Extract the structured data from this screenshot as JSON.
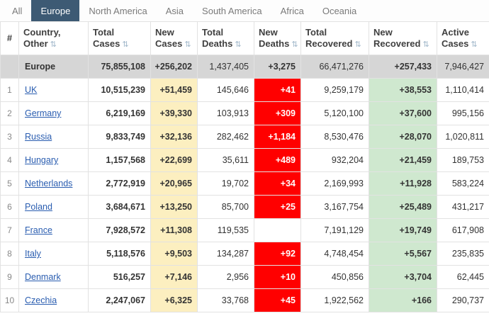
{
  "tabs": {
    "items": [
      {
        "label": "All",
        "active": false
      },
      {
        "label": "Europe",
        "active": true
      },
      {
        "label": "North America",
        "active": false
      },
      {
        "label": "Asia",
        "active": false
      },
      {
        "label": "South America",
        "active": false
      },
      {
        "label": "Africa",
        "active": false
      },
      {
        "label": "Oceania",
        "active": false
      }
    ]
  },
  "table": {
    "sort_icon": "⇅",
    "headers": [
      {
        "label": "#",
        "sortable": false
      },
      {
        "label": "Country, Other",
        "sortable": true
      },
      {
        "label": "Total Cases",
        "sortable": true
      },
      {
        "label": "New Cases",
        "sortable": true
      },
      {
        "label": "Total Deaths",
        "sortable": true
      },
      {
        "label": "New Deaths",
        "sortable": true
      },
      {
        "label": "Total Recovered",
        "sortable": true
      },
      {
        "label": "New Recovered",
        "sortable": true
      },
      {
        "label": "Active Cases",
        "sortable": true
      }
    ],
    "totals_row": {
      "rank": "",
      "country": "Europe",
      "total_cases": "75,855,108",
      "new_cases": "+256,202",
      "total_deaths": "1,437,405",
      "new_deaths": "+3,275",
      "total_recovered": "66,471,276",
      "new_recovered": "+257,433",
      "active_cases": "7,946,427"
    },
    "rows": [
      {
        "rank": "1",
        "country": "UK",
        "total_cases": "10,515,239",
        "new_cases": "+51,459",
        "total_deaths": "145,646",
        "new_deaths": "+41",
        "total_recovered": "9,259,179",
        "new_recovered": "+38,553",
        "active_cases": "1,110,414"
      },
      {
        "rank": "2",
        "country": "Germany",
        "total_cases": "6,219,169",
        "new_cases": "+39,330",
        "total_deaths": "103,913",
        "new_deaths": "+309",
        "total_recovered": "5,120,100",
        "new_recovered": "+37,600",
        "active_cases": "995,156"
      },
      {
        "rank": "3",
        "country": "Russia",
        "total_cases": "9,833,749",
        "new_cases": "+32,136",
        "total_deaths": "282,462",
        "new_deaths": "+1,184",
        "total_recovered": "8,530,476",
        "new_recovered": "+28,070",
        "active_cases": "1,020,811"
      },
      {
        "rank": "4",
        "country": "Hungary",
        "total_cases": "1,157,568",
        "new_cases": "+22,699",
        "total_deaths": "35,611",
        "new_deaths": "+489",
        "total_recovered": "932,204",
        "new_recovered": "+21,459",
        "active_cases": "189,753"
      },
      {
        "rank": "5",
        "country": "Netherlands",
        "total_cases": "2,772,919",
        "new_cases": "+20,965",
        "total_deaths": "19,702",
        "new_deaths": "+34",
        "total_recovered": "2,169,993",
        "new_recovered": "+11,928",
        "active_cases": "583,224"
      },
      {
        "rank": "6",
        "country": "Poland",
        "total_cases": "3,684,671",
        "new_cases": "+13,250",
        "total_deaths": "85,700",
        "new_deaths": "+25",
        "total_recovered": "3,167,754",
        "new_recovered": "+25,489",
        "active_cases": "431,217"
      },
      {
        "rank": "7",
        "country": "France",
        "total_cases": "7,928,572",
        "new_cases": "+11,308",
        "total_deaths": "119,535",
        "new_deaths": "",
        "total_recovered": "7,191,129",
        "new_recovered": "+19,749",
        "active_cases": "617,908"
      },
      {
        "rank": "8",
        "country": "Italy",
        "total_cases": "5,118,576",
        "new_cases": "+9,503",
        "total_deaths": "134,287",
        "new_deaths": "+92",
        "total_recovered": "4,748,454",
        "new_recovered": "+5,567",
        "active_cases": "235,835"
      },
      {
        "rank": "9",
        "country": "Denmark",
        "total_cases": "516,257",
        "new_cases": "+7,146",
        "total_deaths": "2,956",
        "new_deaths": "+10",
        "total_recovered": "450,856",
        "new_recovered": "+3,704",
        "active_cases": "62,445"
      },
      {
        "rank": "10",
        "country": "Czechia",
        "total_cases": "2,247,067",
        "new_cases": "+6,325",
        "total_deaths": "33,768",
        "new_deaths": "+45",
        "total_recovered": "1,922,562",
        "new_recovered": "+166",
        "active_cases": "290,737"
      }
    ]
  },
  "colors": {
    "active_tab_bg": "#3d5a74",
    "new_cases_bg": "#fcefc0",
    "new_deaths_bg": "#ff0000",
    "new_recovered_bg": "#cfe8cf",
    "totals_row_bg": "#d6d6d6",
    "link_color": "#2a5db0"
  }
}
